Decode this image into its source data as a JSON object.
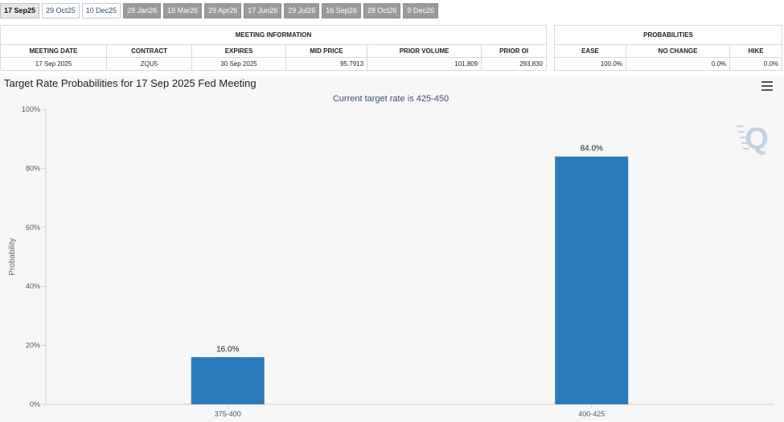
{
  "tabs": [
    {
      "label": "17 Sep25",
      "state": "active"
    },
    {
      "label": "29 Oct25",
      "state": "light"
    },
    {
      "label": "10 Dec25",
      "state": "light"
    },
    {
      "label": "28 Jan26",
      "state": "dark"
    },
    {
      "label": "18 Mar26",
      "state": "dark"
    },
    {
      "label": "29 Apr26",
      "state": "dark"
    },
    {
      "label": "17 Jun26",
      "state": "dark"
    },
    {
      "label": "29 Jul26",
      "state": "dark"
    },
    {
      "label": "16 Sep26",
      "state": "dark"
    },
    {
      "label": "28 Oct26",
      "state": "dark"
    },
    {
      "label": "9 Dec26",
      "state": "dark"
    }
  ],
  "meeting_info": {
    "title": "MEETING INFORMATION",
    "headers": [
      "MEETING DATE",
      "CONTRACT",
      "EXPIRES",
      "MID PRICE",
      "PRIOR VOLUME",
      "PRIOR OI"
    ],
    "row": [
      "17 Sep 2025",
      "ZQU5",
      "30 Sep 2025",
      "95.7913",
      "101,809",
      "293,830"
    ]
  },
  "probabilities": {
    "title": "PROBABILITIES",
    "headers": [
      "EASE",
      "NO CHANGE",
      "HIKE"
    ],
    "row": [
      "100.0%",
      "0.0%",
      "0.0%"
    ]
  },
  "chart_title": "Target Rate Probabilities for 17 Sep 2025 Fed Meeting",
  "chart_data": {
    "type": "bar",
    "subtitle": "Current target rate is 425-450",
    "ylabel": "Probability",
    "xlabel": "",
    "ylim": [
      0,
      100
    ],
    "yticks": [
      "0%",
      "20%",
      "40%",
      "60%",
      "80%",
      "100%"
    ],
    "categories": [
      "375-400",
      "400-425"
    ],
    "values": [
      16.0,
      84.0
    ],
    "data_labels": [
      "16.0%",
      "84.0%"
    ],
    "bar_color": "#2b7bba",
    "grid": false
  },
  "colors": {
    "bar": "#2b7bba",
    "subtitle": "#3d4f73",
    "watermark": "#c3d3e3"
  },
  "icons": {
    "menu": "hamburger-menu-icon",
    "watermark": "quikstrike-q-logo"
  }
}
